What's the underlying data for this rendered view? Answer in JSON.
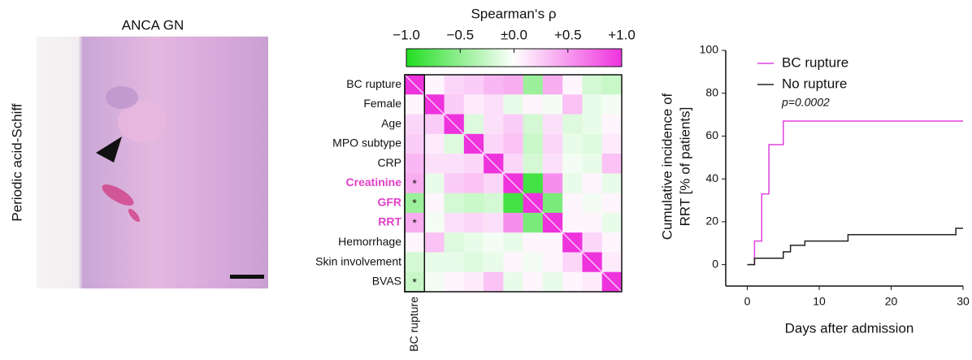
{
  "image_panel": {
    "title": "ANCA GN",
    "ylabel": "Periodic acid-Schiff"
  },
  "chart_data": [
    {
      "type": "heatmap",
      "title": "Spearman‘s ρ",
      "x_categories": [
        "BC rupture",
        null,
        null,
        null,
        null,
        null,
        null,
        null,
        null,
        null,
        null
      ],
      "y_categories": [
        "BC rupture",
        "Female",
        "Age",
        "MPO subtype",
        "CRP",
        "Creatinine",
        "GFR",
        "RRT",
        "Hemorrhage",
        "Skin involvement",
        "BVAS"
      ],
      "values": [
        [
          1,
          0.05,
          0.2,
          0.25,
          0.35,
          0.4,
          -0.45,
          0.4,
          0.05,
          -0.2,
          -0.25
        ],
        [
          0.05,
          1,
          0.25,
          0.1,
          0.15,
          -0.1,
          0.05,
          -0.05,
          0.3,
          -0.1,
          -0.05
        ],
        [
          0.2,
          0.25,
          1,
          -0.15,
          0.15,
          0.25,
          -0.2,
          0.15,
          -0.15,
          -0.1,
          0.05
        ],
        [
          0.25,
          0.1,
          -0.15,
          1,
          0.2,
          0.3,
          -0.25,
          0.2,
          -0.1,
          -0.15,
          0.1
        ],
        [
          0.35,
          0.15,
          0.15,
          0.2,
          1,
          0.2,
          -0.2,
          0.15,
          -0.05,
          -0.1,
          0.3
        ],
        [
          0.4,
          -0.1,
          0.25,
          0.3,
          0.2,
          1,
          -0.85,
          0.55,
          -0.1,
          0.05,
          -0.1
        ],
        [
          -0.45,
          0.05,
          -0.2,
          -0.25,
          -0.2,
          -0.85,
          1,
          -0.6,
          0.05,
          -0.05,
          0.05
        ],
        [
          0.4,
          -0.05,
          0.15,
          0.2,
          0.15,
          0.55,
          -0.6,
          1,
          0.05,
          0.05,
          -0.1
        ],
        [
          0.05,
          0.3,
          -0.15,
          -0.1,
          -0.05,
          -0.1,
          0.05,
          0.05,
          1,
          0.2,
          0.05
        ],
        [
          -0.2,
          -0.1,
          -0.1,
          -0.15,
          -0.1,
          0.05,
          -0.05,
          0.05,
          0.2,
          1,
          0.1
        ],
        [
          -0.25,
          -0.05,
          0.05,
          0.1,
          0.3,
          -0.1,
          0.05,
          -0.1,
          0.05,
          0.1,
          1
        ]
      ],
      "colormap": [
        "#22dd22",
        "#ffffff",
        "#ee33dd"
      ],
      "clim": [
        -1,
        1
      ],
      "cticks": [
        {
          "value": -1,
          "label": "−1.0"
        },
        {
          "value": -0.5,
          "label": "−0.5"
        },
        {
          "value": 0,
          "label": "±0.0"
        },
        {
          "value": 0.5,
          "label": "+0.5"
        },
        {
          "value": 1,
          "label": "+1.0"
        }
      ],
      "highlight_rows": [
        5,
        6,
        7
      ],
      "highlight_color": "#e040c8",
      "annotations": [
        {
          "row": 5,
          "col": 0,
          "text": "*"
        },
        {
          "row": 6,
          "col": 0,
          "text": "*"
        },
        {
          "row": 7,
          "col": 0,
          "text": "*"
        },
        {
          "row": 10,
          "col": 0,
          "text": "*"
        }
      ]
    },
    {
      "type": "line",
      "step": true,
      "xlabel": "Days after admission",
      "ylabel": [
        "Cumulative incidence of",
        "RRT [% of patients]"
      ],
      "annotation": "p=0.0002",
      "legend": "upper left",
      "xlim": [
        -3,
        30
      ],
      "ylim": [
        -10,
        100
      ],
      "xticks": [
        0,
        10,
        20,
        30
      ],
      "yticks": [
        0,
        20,
        40,
        60,
        80,
        100
      ],
      "series": [
        {
          "name": "BC rupture",
          "color": "#e040e0",
          "x": [
            0,
            1,
            2,
            3,
            5,
            30
          ],
          "values": [
            0,
            11,
            33,
            56,
            67,
            67
          ]
        },
        {
          "name": "No rupture",
          "color": "#222222",
          "x": [
            0,
            1,
            5,
            6,
            8,
            14,
            29,
            30
          ],
          "values": [
            0,
            3,
            6,
            9,
            11,
            14,
            17,
            17
          ]
        }
      ]
    }
  ]
}
